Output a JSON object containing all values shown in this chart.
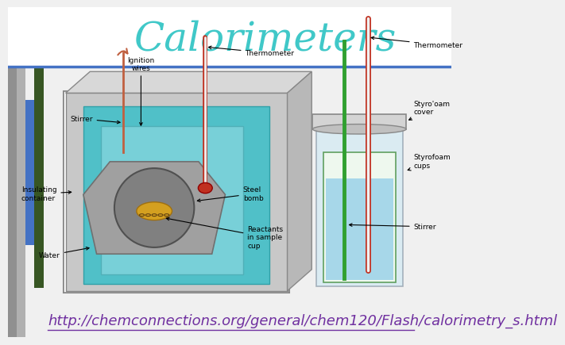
{
  "title": "Calorimeters",
  "title_color": "#40C8C8",
  "title_fontsize": 36,
  "title_style": "italic",
  "title_font": "serif",
  "url_text": "http://chemconnections.org/general/chem120/Flash/calorimetry_s.html",
  "url_color": "#7030A0",
  "url_fontsize": 13,
  "background_color": "#F0F0F0",
  "header_line_color": "#4472C4"
}
